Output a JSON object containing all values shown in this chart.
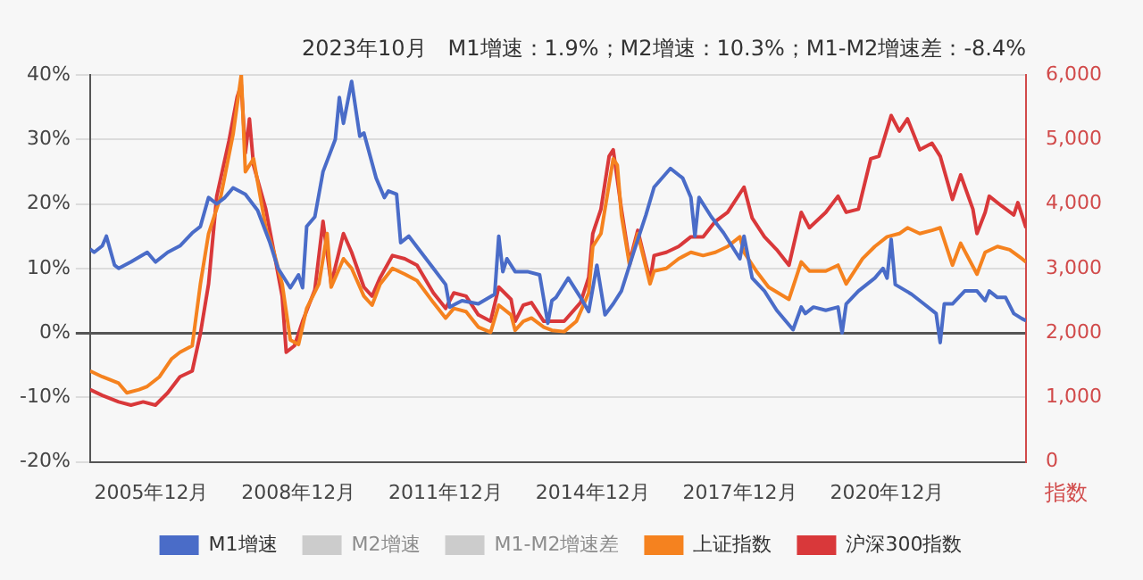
{
  "chart_data": {
    "type": "line",
    "title": "2023年10月　M1增速：1.9%；M2增速：10.3%；M1-M2增速差：-8.4%",
    "y2label": "指数",
    "xlim": [
      "2004-09",
      "2023-10"
    ],
    "xticks": [
      {
        "value": "2005-12",
        "label": "2005年12月"
      },
      {
        "value": "2008-12",
        "label": "2008年12月"
      },
      {
        "value": "2011-12",
        "label": "2011年12月"
      },
      {
        "value": "2014-12",
        "label": "2014年12月"
      },
      {
        "value": "2017-12",
        "label": "2017年12月"
      },
      {
        "value": "2020-12",
        "label": "2020年12月"
      }
    ],
    "ylim": [
      -20,
      40
    ],
    "yticks": [
      {
        "value": -20,
        "label": "-20%"
      },
      {
        "value": -10,
        "label": "-10%"
      },
      {
        "value": 0,
        "label": "0%"
      },
      {
        "value": 10,
        "label": "10%"
      },
      {
        "value": 20,
        "label": "20%"
      },
      {
        "value": 30,
        "label": "30%"
      },
      {
        "value": 40,
        "label": "40%"
      }
    ],
    "y2lim": [
      0,
      6000
    ],
    "y2ticks": [
      {
        "value": 0,
        "label": "0"
      },
      {
        "value": 1000,
        "label": "1,000"
      },
      {
        "value": 2000,
        "label": "2,000"
      },
      {
        "value": 3000,
        "label": "3,000"
      },
      {
        "value": 4000,
        "label": "4,000"
      },
      {
        "value": 5000,
        "label": "5,000"
      },
      {
        "value": 6000,
        "label": "6,000"
      }
    ],
    "grid": "y",
    "legend": "bottom",
    "marker": "none",
    "line_style": "solid",
    "series": [
      {
        "name": "M1增速",
        "color": "#4a6cc8",
        "x": [
          "2004-09",
          "2004-10",
          "2004-12",
          "2005-01",
          "2005-03",
          "2005-04",
          "2005-07",
          "2005-11",
          "2006-01",
          "2006-04",
          "2006-07",
          "2006-10",
          "2006-12",
          "2007-02",
          "2007-04",
          "2007-06",
          "2007-08",
          "2007-11",
          "2008-02",
          "2008-05",
          "2008-07",
          "2008-10",
          "2008-12",
          "2009-01",
          "2009-02",
          "2009-04",
          "2009-06",
          "2009-09",
          "2009-10",
          "2009-11",
          "2010-01",
          "2010-03",
          "2010-04",
          "2010-07",
          "2010-09",
          "2010-10",
          "2010-12",
          "2011-01",
          "2011-03",
          "2011-06",
          "2011-09",
          "2011-12",
          "2012-01",
          "2012-04",
          "2012-08",
          "2012-12",
          "2013-01",
          "2013-02",
          "2013-03",
          "2013-05",
          "2013-08",
          "2013-11",
          "2014-01",
          "2014-02",
          "2014-03",
          "2014-06",
          "2014-09",
          "2014-11",
          "2015-01",
          "2015-03",
          "2015-05",
          "2015-07",
          "2015-10",
          "2016-01",
          "2016-03",
          "2016-07",
          "2016-10",
          "2016-12",
          "2017-01",
          "2017-02",
          "2017-05",
          "2017-08",
          "2017-12",
          "2018-01",
          "2018-03",
          "2018-06",
          "2018-09",
          "2019-01",
          "2019-03",
          "2019-04",
          "2019-06",
          "2019-09",
          "2019-12",
          "2020-01",
          "2020-02",
          "2020-05",
          "2020-09",
          "2020-11",
          "2020-12",
          "2021-01",
          "2021-02",
          "2021-06",
          "2021-09",
          "2021-12",
          "2022-01",
          "2022-02",
          "2022-04",
          "2022-07",
          "2022-10",
          "2022-12",
          "2023-01",
          "2023-03",
          "2023-05",
          "2023-07",
          "2023-09",
          "2023-10"
        ],
        "values": [
          13,
          12.5,
          13.5,
          15,
          10.5,
          10,
          11,
          12.5,
          11,
          12.5,
          13.5,
          15.5,
          16.5,
          21,
          20,
          21,
          22.5,
          21.5,
          19,
          14,
          10,
          7,
          9,
          7,
          16.5,
          18,
          25,
          30,
          36.5,
          32.5,
          39,
          30.5,
          31,
          24,
          21,
          22,
          21.5,
          14,
          15,
          12.5,
          10,
          7.5,
          4,
          5,
          4.5,
          6,
          15,
          9.5,
          11.5,
          9.5,
          9.5,
          9,
          1.5,
          5,
          5.5,
          8.5,
          5.5,
          3.3,
          10.5,
          2.8,
          4.5,
          6.5,
          12.5,
          18.3,
          22.6,
          25.5,
          24,
          21,
          15,
          21,
          18,
          15.5,
          11.5,
          15,
          8.5,
          6.5,
          3.5,
          0.5,
          4,
          3,
          4,
          3.5,
          4,
          0,
          4.5,
          6.5,
          8.5,
          10,
          8.5,
          14.5,
          7.5,
          6,
          4.5,
          3,
          -1.5,
          4.5,
          4.5,
          6.5,
          6.5,
          5,
          6.5,
          5.5,
          5.5,
          3,
          2.2,
          1.9
        ]
      },
      {
        "name": "M2增速",
        "color": "#cccccc"
      },
      {
        "name": "M1-M2增速差",
        "color": "#cccccc"
      },
      {
        "name": "上证指数",
        "color": "#f5821f",
        "axis": "y2",
        "x": [
          "2004-09",
          "2004-12",
          "2005-04",
          "2005-06",
          "2005-09",
          "2005-11",
          "2006-02",
          "2006-05",
          "2006-07",
          "2006-10",
          "2006-12",
          "2007-02",
          "2007-05",
          "2007-08",
          "2007-10",
          "2007-11",
          "2008-01",
          "2008-04",
          "2008-06",
          "2008-08",
          "2008-10",
          "2008-12",
          "2009-02",
          "2009-05",
          "2009-07",
          "2009-08",
          "2009-11",
          "2010-01",
          "2010-04",
          "2010-06",
          "2010-08",
          "2010-11",
          "2011-02",
          "2011-05",
          "2011-09",
          "2011-12",
          "2012-02",
          "2012-05",
          "2012-08",
          "2012-11",
          "2013-01",
          "2013-04",
          "2013-05",
          "2013-07",
          "2013-09",
          "2013-12",
          "2014-02",
          "2014-05",
          "2014-08",
          "2014-11",
          "2014-12",
          "2015-02",
          "2015-05",
          "2015-06",
          "2015-07",
          "2015-09",
          "2015-11",
          "2016-02",
          "2016-03",
          "2016-06",
          "2016-09",
          "2016-12",
          "2017-03",
          "2017-06",
          "2017-09",
          "2017-12",
          "2018-01",
          "2018-04",
          "2018-07",
          "2018-12",
          "2019-03",
          "2019-05",
          "2019-09",
          "2019-12",
          "2020-02",
          "2020-06",
          "2020-09",
          "2020-12",
          "2021-03",
          "2021-05",
          "2021-08",
          "2021-11",
          "2022-01",
          "2022-04",
          "2022-06",
          "2022-10",
          "2022-12",
          "2023-03",
          "2023-06",
          "2023-09",
          "2023-10"
        ],
        "values": [
          1410,
          1320,
          1220,
          1070,
          1120,
          1170,
          1320,
          1600,
          1700,
          1800,
          2760,
          3540,
          4120,
          5080,
          6000,
          4500,
          4700,
          3630,
          3250,
          2760,
          1890,
          1820,
          2380,
          2760,
          3540,
          2710,
          3150,
          3000,
          2570,
          2430,
          2760,
          3000,
          2910,
          2810,
          2470,
          2230,
          2380,
          2330,
          2090,
          2010,
          2430,
          2280,
          2040,
          2180,
          2230,
          2090,
          2040,
          2020,
          2180,
          2620,
          3340,
          3540,
          4700,
          4600,
          3830,
          3050,
          3540,
          2760,
          2960,
          3000,
          3150,
          3250,
          3200,
          3250,
          3340,
          3490,
          3250,
          2960,
          2710,
          2520,
          3100,
          2960,
          2960,
          3050,
          2760,
          3150,
          3340,
          3490,
          3540,
          3630,
          3540,
          3590,
          3630,
          3050,
          3390,
          2910,
          3250,
          3340,
          3290,
          3150,
          3100
        ]
      },
      {
        "name": "沪深300指数",
        "color": "#d9383a",
        "axis": "y2",
        "x": [
          "2004-09",
          "2004-12",
          "2005-04",
          "2005-07",
          "2005-10",
          "2006-01",
          "2006-04",
          "2006-07",
          "2006-10",
          "2006-12",
          "2007-02",
          "2007-04",
          "2007-07",
          "2007-09",
          "2007-10",
          "2007-11",
          "2007-12",
          "2008-01",
          "2008-04",
          "2008-06",
          "2008-08",
          "2008-09",
          "2008-11",
          "2009-01",
          "2009-04",
          "2009-06",
          "2009-08",
          "2009-11",
          "2010-01",
          "2010-04",
          "2010-06",
          "2010-08",
          "2010-11",
          "2011-02",
          "2011-05",
          "2011-09",
          "2011-12",
          "2012-02",
          "2012-05",
          "2012-08",
          "2012-11",
          "2013-01",
          "2013-04",
          "2013-05",
          "2013-07",
          "2013-09",
          "2013-12",
          "2014-02",
          "2014-05",
          "2014-09",
          "2014-11",
          "2014-12",
          "2015-02",
          "2015-04",
          "2015-05",
          "2015-07",
          "2015-09",
          "2015-11",
          "2016-02",
          "2016-03",
          "2016-06",
          "2016-09",
          "2016-12",
          "2017-03",
          "2017-06",
          "2017-09",
          "2018-01",
          "2018-03",
          "2018-06",
          "2018-09",
          "2018-12",
          "2019-03",
          "2019-05",
          "2019-09",
          "2019-12",
          "2020-02",
          "2020-05",
          "2020-08",
          "2020-10",
          "2021-01",
          "2021-03",
          "2021-05",
          "2021-08",
          "2021-11",
          "2022-01",
          "2022-04",
          "2022-06",
          "2022-09",
          "2022-10",
          "2022-12",
          "2023-01",
          "2023-04",
          "2023-07",
          "2023-08",
          "2023-10"
        ],
        "values": [
          1120,
          1030,
          930,
          880,
          930,
          880,
          1070,
          1320,
          1410,
          1990,
          2760,
          4120,
          4980,
          5660,
          5850,
          4790,
          5320,
          4600,
          3920,
          3250,
          2570,
          1700,
          1800,
          2180,
          2670,
          3730,
          2760,
          3540,
          3250,
          2710,
          2570,
          2860,
          3200,
          3150,
          3050,
          2620,
          2380,
          2620,
          2570,
          2280,
          2180,
          2710,
          2520,
          2180,
          2430,
          2470,
          2180,
          2180,
          2180,
          2470,
          2860,
          3540,
          3920,
          4740,
          4840,
          3920,
          3100,
          3590,
          2810,
          3200,
          3250,
          3340,
          3490,
          3490,
          3730,
          3870,
          4260,
          3780,
          3490,
          3290,
          3050,
          3870,
          3630,
          3870,
          4120,
          3870,
          3920,
          4700,
          4740,
          5370,
          5130,
          5320,
          4840,
          4940,
          4740,
          4070,
          4450,
          3920,
          3540,
          3870,
          4120,
          3970,
          3830,
          4020,
          3630
        ]
      }
    ]
  }
}
